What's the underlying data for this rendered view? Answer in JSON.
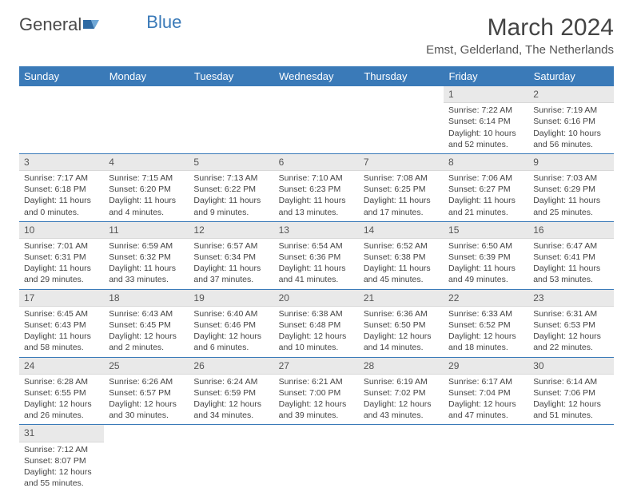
{
  "logo": {
    "text1": "General",
    "text2": "Blue"
  },
  "title": "March 2024",
  "location": "Emst, Gelderland, The Netherlands",
  "weekdays": [
    "Sunday",
    "Monday",
    "Tuesday",
    "Wednesday",
    "Thursday",
    "Friday",
    "Saturday"
  ],
  "colors": {
    "header_bg": "#3a7ab8",
    "header_text": "#ffffff",
    "daynum_bg": "#e9e9e9",
    "border": "#3a7ab8",
    "text": "#444444"
  },
  "weeks": [
    [
      null,
      null,
      null,
      null,
      null,
      {
        "d": "1",
        "sr": "Sunrise: 7:22 AM",
        "ss": "Sunset: 6:14 PM",
        "dl1": "Daylight: 10 hours",
        "dl2": "and 52 minutes."
      },
      {
        "d": "2",
        "sr": "Sunrise: 7:19 AM",
        "ss": "Sunset: 6:16 PM",
        "dl1": "Daylight: 10 hours",
        "dl2": "and 56 minutes."
      }
    ],
    [
      {
        "d": "3",
        "sr": "Sunrise: 7:17 AM",
        "ss": "Sunset: 6:18 PM",
        "dl1": "Daylight: 11 hours",
        "dl2": "and 0 minutes."
      },
      {
        "d": "4",
        "sr": "Sunrise: 7:15 AM",
        "ss": "Sunset: 6:20 PM",
        "dl1": "Daylight: 11 hours",
        "dl2": "and 4 minutes."
      },
      {
        "d": "5",
        "sr": "Sunrise: 7:13 AM",
        "ss": "Sunset: 6:22 PM",
        "dl1": "Daylight: 11 hours",
        "dl2": "and 9 minutes."
      },
      {
        "d": "6",
        "sr": "Sunrise: 7:10 AM",
        "ss": "Sunset: 6:23 PM",
        "dl1": "Daylight: 11 hours",
        "dl2": "and 13 minutes."
      },
      {
        "d": "7",
        "sr": "Sunrise: 7:08 AM",
        "ss": "Sunset: 6:25 PM",
        "dl1": "Daylight: 11 hours",
        "dl2": "and 17 minutes."
      },
      {
        "d": "8",
        "sr": "Sunrise: 7:06 AM",
        "ss": "Sunset: 6:27 PM",
        "dl1": "Daylight: 11 hours",
        "dl2": "and 21 minutes."
      },
      {
        "d": "9",
        "sr": "Sunrise: 7:03 AM",
        "ss": "Sunset: 6:29 PM",
        "dl1": "Daylight: 11 hours",
        "dl2": "and 25 minutes."
      }
    ],
    [
      {
        "d": "10",
        "sr": "Sunrise: 7:01 AM",
        "ss": "Sunset: 6:31 PM",
        "dl1": "Daylight: 11 hours",
        "dl2": "and 29 minutes."
      },
      {
        "d": "11",
        "sr": "Sunrise: 6:59 AM",
        "ss": "Sunset: 6:32 PM",
        "dl1": "Daylight: 11 hours",
        "dl2": "and 33 minutes."
      },
      {
        "d": "12",
        "sr": "Sunrise: 6:57 AM",
        "ss": "Sunset: 6:34 PM",
        "dl1": "Daylight: 11 hours",
        "dl2": "and 37 minutes."
      },
      {
        "d": "13",
        "sr": "Sunrise: 6:54 AM",
        "ss": "Sunset: 6:36 PM",
        "dl1": "Daylight: 11 hours",
        "dl2": "and 41 minutes."
      },
      {
        "d": "14",
        "sr": "Sunrise: 6:52 AM",
        "ss": "Sunset: 6:38 PM",
        "dl1": "Daylight: 11 hours",
        "dl2": "and 45 minutes."
      },
      {
        "d": "15",
        "sr": "Sunrise: 6:50 AM",
        "ss": "Sunset: 6:39 PM",
        "dl1": "Daylight: 11 hours",
        "dl2": "and 49 minutes."
      },
      {
        "d": "16",
        "sr": "Sunrise: 6:47 AM",
        "ss": "Sunset: 6:41 PM",
        "dl1": "Daylight: 11 hours",
        "dl2": "and 53 minutes."
      }
    ],
    [
      {
        "d": "17",
        "sr": "Sunrise: 6:45 AM",
        "ss": "Sunset: 6:43 PM",
        "dl1": "Daylight: 11 hours",
        "dl2": "and 58 minutes."
      },
      {
        "d": "18",
        "sr": "Sunrise: 6:43 AM",
        "ss": "Sunset: 6:45 PM",
        "dl1": "Daylight: 12 hours",
        "dl2": "and 2 minutes."
      },
      {
        "d": "19",
        "sr": "Sunrise: 6:40 AM",
        "ss": "Sunset: 6:46 PM",
        "dl1": "Daylight: 12 hours",
        "dl2": "and 6 minutes."
      },
      {
        "d": "20",
        "sr": "Sunrise: 6:38 AM",
        "ss": "Sunset: 6:48 PM",
        "dl1": "Daylight: 12 hours",
        "dl2": "and 10 minutes."
      },
      {
        "d": "21",
        "sr": "Sunrise: 6:36 AM",
        "ss": "Sunset: 6:50 PM",
        "dl1": "Daylight: 12 hours",
        "dl2": "and 14 minutes."
      },
      {
        "d": "22",
        "sr": "Sunrise: 6:33 AM",
        "ss": "Sunset: 6:52 PM",
        "dl1": "Daylight: 12 hours",
        "dl2": "and 18 minutes."
      },
      {
        "d": "23",
        "sr": "Sunrise: 6:31 AM",
        "ss": "Sunset: 6:53 PM",
        "dl1": "Daylight: 12 hours",
        "dl2": "and 22 minutes."
      }
    ],
    [
      {
        "d": "24",
        "sr": "Sunrise: 6:28 AM",
        "ss": "Sunset: 6:55 PM",
        "dl1": "Daylight: 12 hours",
        "dl2": "and 26 minutes."
      },
      {
        "d": "25",
        "sr": "Sunrise: 6:26 AM",
        "ss": "Sunset: 6:57 PM",
        "dl1": "Daylight: 12 hours",
        "dl2": "and 30 minutes."
      },
      {
        "d": "26",
        "sr": "Sunrise: 6:24 AM",
        "ss": "Sunset: 6:59 PM",
        "dl1": "Daylight: 12 hours",
        "dl2": "and 34 minutes."
      },
      {
        "d": "27",
        "sr": "Sunrise: 6:21 AM",
        "ss": "Sunset: 7:00 PM",
        "dl1": "Daylight: 12 hours",
        "dl2": "and 39 minutes."
      },
      {
        "d": "28",
        "sr": "Sunrise: 6:19 AM",
        "ss": "Sunset: 7:02 PM",
        "dl1": "Daylight: 12 hours",
        "dl2": "and 43 minutes."
      },
      {
        "d": "29",
        "sr": "Sunrise: 6:17 AM",
        "ss": "Sunset: 7:04 PM",
        "dl1": "Daylight: 12 hours",
        "dl2": "and 47 minutes."
      },
      {
        "d": "30",
        "sr": "Sunrise: 6:14 AM",
        "ss": "Sunset: 7:06 PM",
        "dl1": "Daylight: 12 hours",
        "dl2": "and 51 minutes."
      }
    ],
    [
      {
        "d": "31",
        "sr": "Sunrise: 7:12 AM",
        "ss": "Sunset: 8:07 PM",
        "dl1": "Daylight: 12 hours",
        "dl2": "and 55 minutes."
      },
      null,
      null,
      null,
      null,
      null,
      null
    ]
  ]
}
